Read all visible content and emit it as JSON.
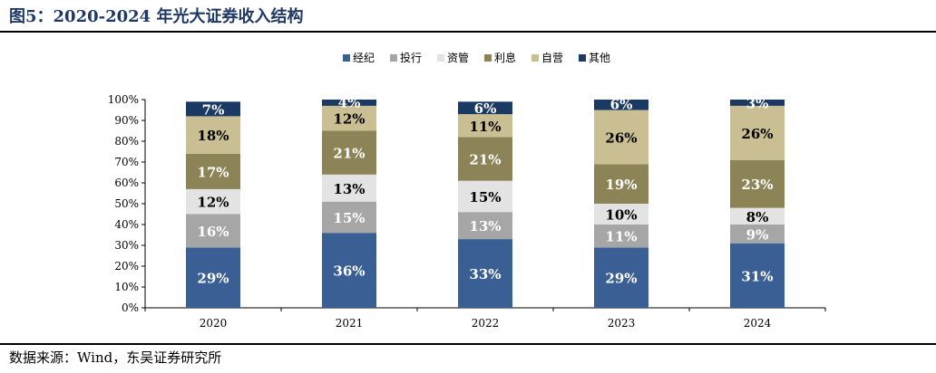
{
  "title": "图5：2020-2024 年光大证券收入结构",
  "source": "数据来源：Wind，东吴证券研究所",
  "chart_data": {
    "type": "bar",
    "stacked": true,
    "categories": [
      "2020",
      "2021",
      "2022",
      "2023",
      "2024"
    ],
    "ylim": [
      0,
      100
    ],
    "yticks": [
      "0%",
      "10%",
      "20%",
      "30%",
      "40%",
      "50%",
      "60%",
      "70%",
      "80%",
      "90%",
      "100%"
    ],
    "legend_position": "top-center",
    "series": [
      {
        "name": "经纪",
        "color": "#3a5f95",
        "label_color": "#ffffff",
        "values": [
          29,
          36,
          33,
          29,
          31
        ],
        "labels": [
          "29%",
          "36%",
          "33%",
          "29%",
          "31%"
        ]
      },
      {
        "name": "投行",
        "color": "#a6a6a6",
        "label_color": "#ffffff",
        "values": [
          16,
          15,
          13,
          11,
          9
        ],
        "labels": [
          "16%",
          "15%",
          "13%",
          "11%",
          "9%"
        ]
      },
      {
        "name": "资管",
        "color": "#e3e3e3",
        "label_color": "#000000",
        "values": [
          12,
          13,
          15,
          10,
          8
        ],
        "labels": [
          "12%",
          "13%",
          "15%",
          "10%",
          "8%"
        ]
      },
      {
        "name": "利息",
        "color": "#8c8456",
        "label_color": "#ffffff",
        "values": [
          17,
          21,
          21,
          19,
          23
        ],
        "labels": [
          "17%",
          "21%",
          "21%",
          "19%",
          "23%"
        ]
      },
      {
        "name": "自营",
        "color": "#c9bf92",
        "label_color": "#000000",
        "values": [
          18,
          12,
          11,
          26,
          26
        ],
        "labels": [
          "18%",
          "12%",
          "11%",
          "26%",
          "26%"
        ]
      },
      {
        "name": "其他",
        "color": "#1b3a63",
        "label_color": "#ffffff",
        "values": [
          7,
          4,
          6,
          6,
          3
        ],
        "labels": [
          "7%",
          "4%",
          "6%",
          "6%",
          "3%"
        ]
      }
    ]
  }
}
